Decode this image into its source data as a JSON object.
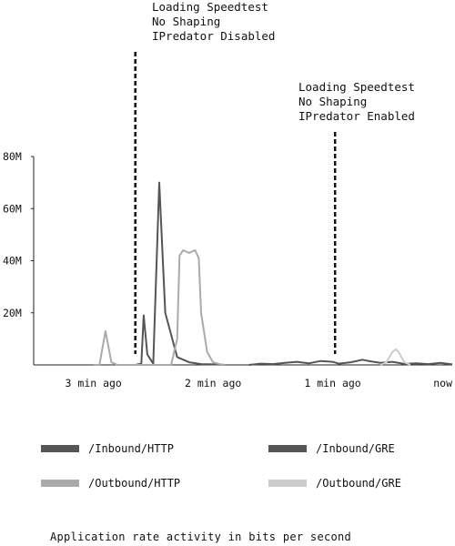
{
  "annotations": [
    {
      "text": "Loading Speedtest\nNo Shaping\nIPredator Disabled",
      "at_x": 2.65
    },
    {
      "text": "Loading Speedtest\nNo Shaping\nIPredator Enabled",
      "at_x": 0.98
    }
  ],
  "legend": [
    {
      "label": "/Inbound/HTTP",
      "color": "#555555"
    },
    {
      "label": "/Inbound/GRE",
      "color": "#555555"
    },
    {
      "label": "/Outbound/HTTP",
      "color": "#aaaaaa"
    },
    {
      "label": "/Outbound/GRE",
      "color": "#cccccc"
    }
  ],
  "caption": "Application rate activity in bits per second",
  "chart_data": {
    "type": "line",
    "title": "",
    "xlabel": "",
    "ylabel": "",
    "x_direction": "minutes ago (decreasing to now)",
    "xlim": [
      3.5,
      0
    ],
    "ylim": [
      0,
      80
    ],
    "y_unit": "M",
    "y_ticks": [
      {
        "value": 20,
        "label": "20M"
      },
      {
        "value": 40,
        "label": "40M"
      },
      {
        "value": 60,
        "label": "60M"
      },
      {
        "value": 80,
        "label": "80M"
      }
    ],
    "x_ticks": [
      {
        "value": 3,
        "label": "3 min ago"
      },
      {
        "value": 2,
        "label": "2 min ago"
      },
      {
        "value": 1,
        "label": "1 min ago"
      },
      {
        "value": 0,
        "label": "now"
      }
    ],
    "grid": false,
    "series": [
      {
        "name": "/Inbound/HTTP",
        "color": "#555555",
        "x": [
          2.65,
          2.6,
          2.58,
          2.55,
          2.5,
          2.45,
          2.4,
          2.3,
          2.2,
          2.1,
          2.0,
          1.9
        ],
        "y": [
          0,
          0.5,
          19,
          4,
          0.5,
          70,
          20,
          3,
          1,
          0.3,
          0.2,
          0
        ]
      },
      {
        "name": "/Inbound/GRE",
        "color": "#555555",
        "x": [
          1.7,
          1.6,
          1.5,
          1.4,
          1.3,
          1.2,
          1.1,
          1.0,
          0.95,
          0.85,
          0.75,
          0.7,
          0.6,
          0.5,
          0.4,
          0.3,
          0.2,
          0.1,
          0.05,
          0
        ],
        "y": [
          0,
          0.5,
          0.3,
          0.8,
          1.2,
          0.6,
          1.5,
          1.2,
          0.5,
          1.0,
          2.0,
          1.5,
          0.8,
          1.2,
          0.4,
          0.6,
          0.3,
          0.8,
          0.5,
          0.2
        ]
      },
      {
        "name": "/Outbound/HTTP",
        "color": "#aaaaaa",
        "x": [
          3.0,
          2.95,
          2.9,
          2.85,
          2.8,
          2.35,
          2.3,
          2.28,
          2.25,
          2.2,
          2.15,
          2.12,
          2.1,
          2.05,
          2.0,
          1.95,
          1.9
        ],
        "y": [
          0,
          0,
          13,
          1,
          0,
          0,
          10,
          42,
          44,
          43,
          44,
          41,
          20,
          5,
          1,
          0.3,
          0
        ]
      },
      {
        "name": "/Outbound/GRE",
        "color": "#cccccc",
        "x": [
          0.6,
          0.55,
          0.5,
          0.47,
          0.45,
          0.4,
          0.35
        ],
        "y": [
          0,
          1,
          5,
          6,
          5,
          1,
          0
        ]
      }
    ]
  }
}
